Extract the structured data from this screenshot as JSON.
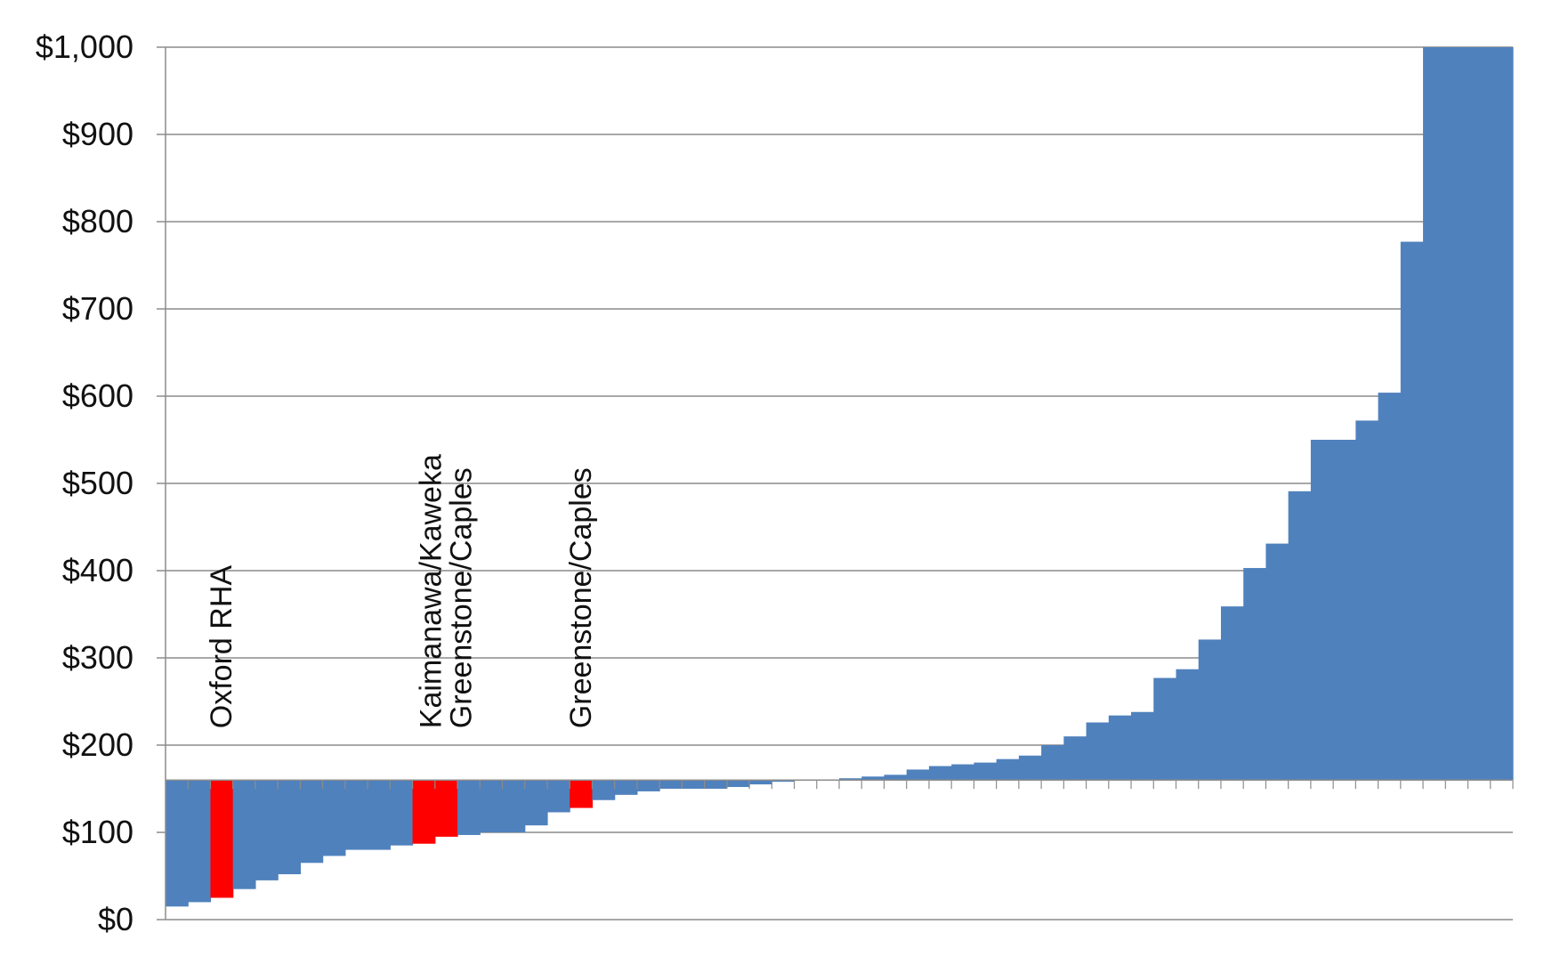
{
  "chart_data": {
    "type": "bar",
    "baseline": 160,
    "ylim": [
      0,
      1000
    ],
    "yticks": [
      {
        "value": 0,
        "label": "$0"
      },
      {
        "value": 100,
        "label": "$100"
      },
      {
        "value": 200,
        "label": "$200"
      },
      {
        "value": 300,
        "label": "$300"
      },
      {
        "value": 400,
        "label": "$400"
      },
      {
        "value": 500,
        "label": "$500"
      },
      {
        "value": 600,
        "label": "$600"
      },
      {
        "value": 700,
        "label": "$700"
      },
      {
        "value": 800,
        "label": "$800"
      },
      {
        "value": 900,
        "label": "$900"
      },
      {
        "value": 1000,
        "label": "$1,000"
      }
    ],
    "grid": true,
    "legend": "none",
    "values": [
      15,
      20,
      25,
      35,
      45,
      52,
      65,
      73,
      80,
      80,
      85,
      87,
      95,
      97,
      100,
      100,
      108,
      123,
      128,
      137,
      143,
      147,
      150,
      150,
      150,
      152,
      155,
      158,
      160,
      160,
      162,
      164,
      166,
      172,
      176,
      178,
      180,
      184,
      188,
      200,
      210,
      226,
      234,
      238,
      277,
      287,
      321,
      359,
      403,
      431,
      491,
      550,
      550,
      572,
      604,
      777,
      1000,
      1000,
      1000,
      1000
    ],
    "highlighted_indices": [
      2,
      11,
      12,
      18
    ],
    "colors": {
      "bar": "#4f81bd",
      "highlight": "#ff0000",
      "grid": "#8c8c8c",
      "axis": "#8c8c8c"
    },
    "annotations": [
      {
        "bar_index": 2,
        "lines": [
          "Oxford RHA"
        ]
      },
      {
        "bar_index": 12,
        "lines": [
          "Kaimanawa/Kaweka",
          "Greenstone/Caples"
        ]
      },
      {
        "bar_index": 18,
        "lines": [
          "Greenstone/Caples"
        ]
      }
    ]
  }
}
